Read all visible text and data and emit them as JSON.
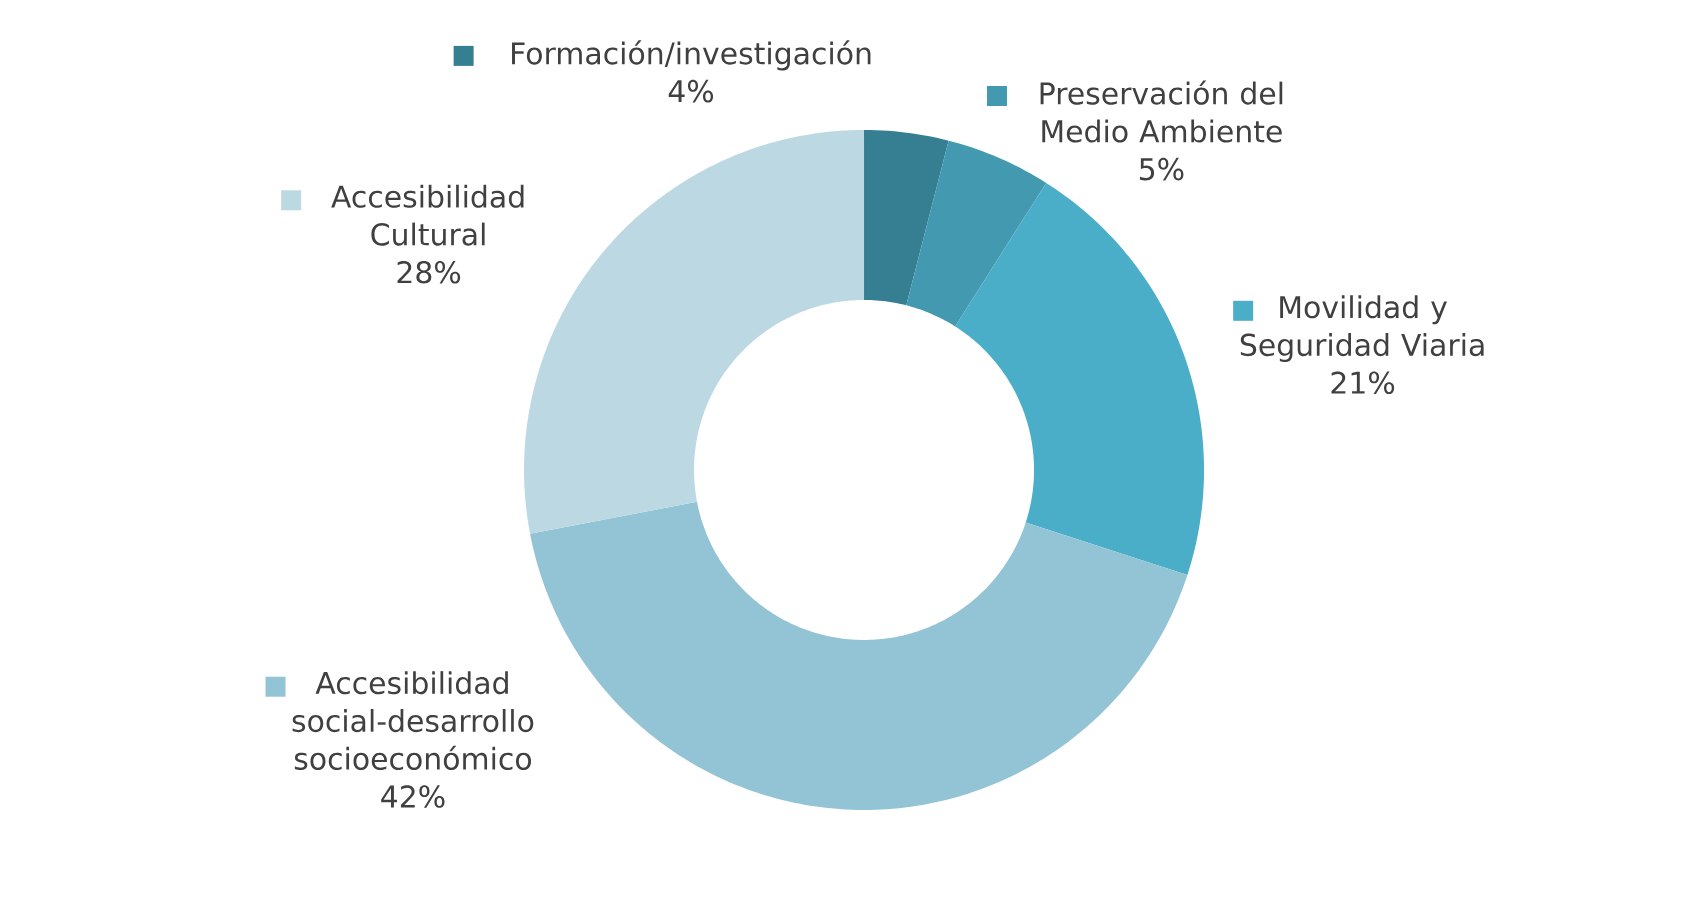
{
  "chart_data": {
    "type": "donut",
    "categories": [
      "Formación/investigación",
      "Preservación del Medio Ambiente",
      "Movilidad y Seguridad Viaria",
      "Accesibilidad social-desarrollo socioeconómico",
      "Accesibilidad Cultural"
    ],
    "values": [
      4,
      5,
      21,
      42,
      28
    ],
    "value_labels": [
      "4%",
      "5%",
      "21%",
      "42%",
      "28%"
    ],
    "colors": [
      "#367f93",
      "#4399b0",
      "#4aaec8",
      "#93c4d5",
      "#bcd8e3"
    ],
    "legend": "top"
  }
}
